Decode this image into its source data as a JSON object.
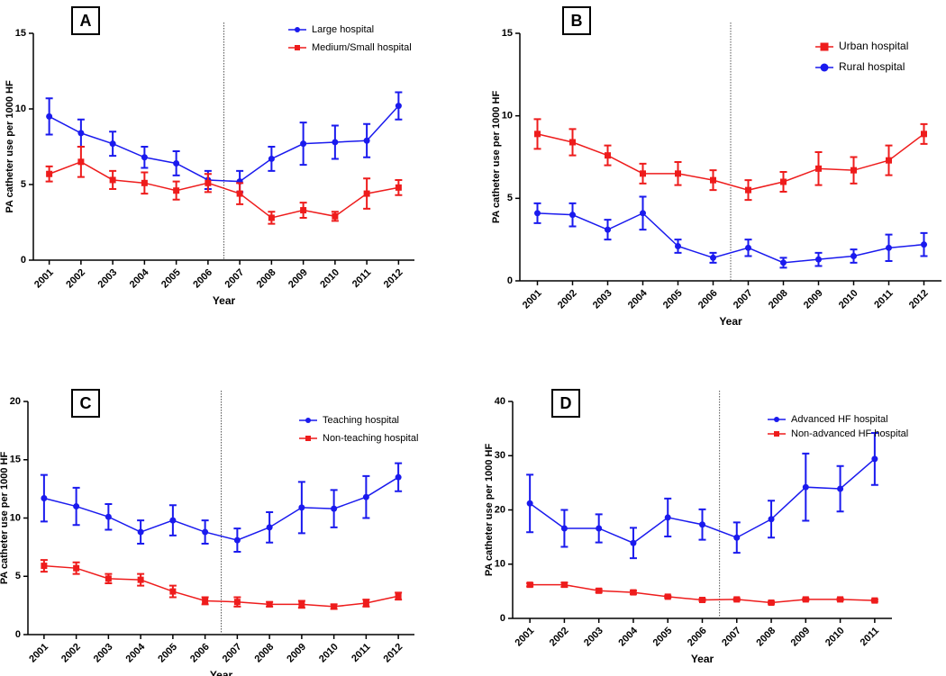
{
  "chart_data": [
    {
      "type": "line",
      "label": "A",
      "xlabel": "Year",
      "ylabel": "PA catheter use per 1000 HF",
      "categories": [
        "2001",
        "2002",
        "2003",
        "2004",
        "2005",
        "2006",
        "2007",
        "2008",
        "2009",
        "2010",
        "2011",
        "2012"
      ],
      "ylim": [
        0,
        15
      ],
      "yticks": [
        0,
        5,
        10,
        15
      ],
      "series": [
        {
          "name": "Large hospital",
          "color": "#1a1aee",
          "marker": "circle",
          "values": [
            9.5,
            8.4,
            7.7,
            6.8,
            6.4,
            5.3,
            5.2,
            6.7,
            7.7,
            7.8,
            7.9,
            10.2
          ],
          "errors": [
            1.2,
            0.9,
            0.8,
            0.7,
            0.8,
            0.6,
            0.7,
            0.8,
            1.4,
            1.1,
            1.1,
            0.9
          ]
        },
        {
          "name": "Medium/Small hospital",
          "color": "#ee1c1c",
          "marker": "square",
          "values": [
            5.7,
            6.5,
            5.3,
            5.1,
            4.6,
            5.1,
            4.4,
            2.8,
            3.3,
            2.9,
            4.4,
            4.8
          ],
          "errors": [
            0.5,
            1.0,
            0.6,
            0.7,
            0.6,
            0.6,
            0.7,
            0.4,
            0.5,
            0.3,
            1.0,
            0.5
          ]
        }
      ]
    },
    {
      "type": "line",
      "label": "B",
      "xlabel": "Year",
      "ylabel": "PA catheter use per 1000 HF",
      "categories": [
        "2001",
        "2002",
        "2003",
        "2004",
        "2005",
        "2006",
        "2007",
        "2008",
        "2009",
        "2010",
        "2011",
        "2012"
      ],
      "ylim": [
        0,
        15
      ],
      "yticks": [
        0,
        5,
        10,
        15
      ],
      "series": [
        {
          "name": "Urban hospital",
          "color": "#ee1c1c",
          "marker": "square",
          "values": [
            8.9,
            8.4,
            7.6,
            6.5,
            6.5,
            6.1,
            5.5,
            6.0,
            6.8,
            6.7,
            7.3,
            8.9
          ],
          "errors": [
            0.9,
            0.8,
            0.6,
            0.6,
            0.7,
            0.6,
            0.6,
            0.6,
            1.0,
            0.8,
            0.9,
            0.6
          ]
        },
        {
          "name": "Rural hospital",
          "color": "#1a1aee",
          "marker": "circle",
          "values": [
            4.1,
            4.0,
            3.1,
            4.1,
            2.1,
            1.4,
            2.0,
            1.1,
            1.3,
            1.5,
            2.0,
            2.2
          ],
          "errors": [
            0.6,
            0.7,
            0.6,
            1.0,
            0.4,
            0.3,
            0.5,
            0.3,
            0.4,
            0.4,
            0.8,
            0.7
          ]
        }
      ]
    },
    {
      "type": "line",
      "label": "C",
      "xlabel": "Year",
      "ylabel": "PA catheter use per 1000 HF",
      "categories": [
        "2001",
        "2002",
        "2003",
        "2004",
        "2005",
        "2006",
        "2007",
        "2008",
        "2009",
        "2010",
        "2011",
        "2012"
      ],
      "ylim": [
        0,
        20
      ],
      "yticks": [
        0,
        5,
        10,
        15,
        20
      ],
      "series": [
        {
          "name": "Teaching hospital",
          "color": "#1a1aee",
          "marker": "circle",
          "values": [
            11.7,
            11.0,
            10.1,
            8.8,
            9.8,
            8.8,
            8.1,
            9.2,
            10.9,
            10.8,
            11.8,
            13.5
          ],
          "errors": [
            2.0,
            1.6,
            1.1,
            1.0,
            1.3,
            1.0,
            1.0,
            1.3,
            2.2,
            1.6,
            1.8,
            1.2
          ]
        },
        {
          "name": "Non-teaching hospital",
          "color": "#ee1c1c",
          "marker": "square",
          "values": [
            5.9,
            5.7,
            4.8,
            4.7,
            3.7,
            2.9,
            2.8,
            2.6,
            2.6,
            2.4,
            2.7,
            3.3
          ],
          "errors": [
            0.5,
            0.5,
            0.4,
            0.5,
            0.5,
            0.3,
            0.4,
            0.2,
            0.3,
            0.2,
            0.3,
            0.3
          ]
        }
      ]
    },
    {
      "type": "line",
      "label": "D",
      "xlabel": "Year",
      "ylabel": "PA catheter use per 1000 HF",
      "categories": [
        "2001",
        "2002",
        "2003",
        "2004",
        "2005",
        "2006",
        "2007",
        "2008",
        "2009",
        "2010",
        "2011"
      ],
      "ylim": [
        0,
        40
      ],
      "yticks": [
        0,
        10,
        20,
        30,
        40
      ],
      "series": [
        {
          "name": "Advanced HF hospital",
          "color": "#1a1aee",
          "marker": "circle",
          "values": [
            21.2,
            16.6,
            16.6,
            13.9,
            18.6,
            17.3,
            14.9,
            18.3,
            24.2,
            23.9,
            29.4
          ],
          "errors": [
            5.3,
            3.4,
            2.6,
            2.8,
            3.5,
            2.8,
            2.8,
            3.4,
            6.2,
            4.2,
            4.8
          ]
        },
        {
          "name": "Non-advanced HF hospital",
          "color": "#ee1c1c",
          "marker": "square",
          "values": [
            6.2,
            6.2,
            5.1,
            4.8,
            4.0,
            3.4,
            3.5,
            2.9,
            3.5,
            3.5,
            3.3
          ],
          "errors": [
            0.3,
            0.4,
            0.3,
            0.3,
            0.2,
            0.2,
            0.2,
            0.2,
            0.2,
            0.2,
            0.2
          ]
        }
      ]
    }
  ]
}
